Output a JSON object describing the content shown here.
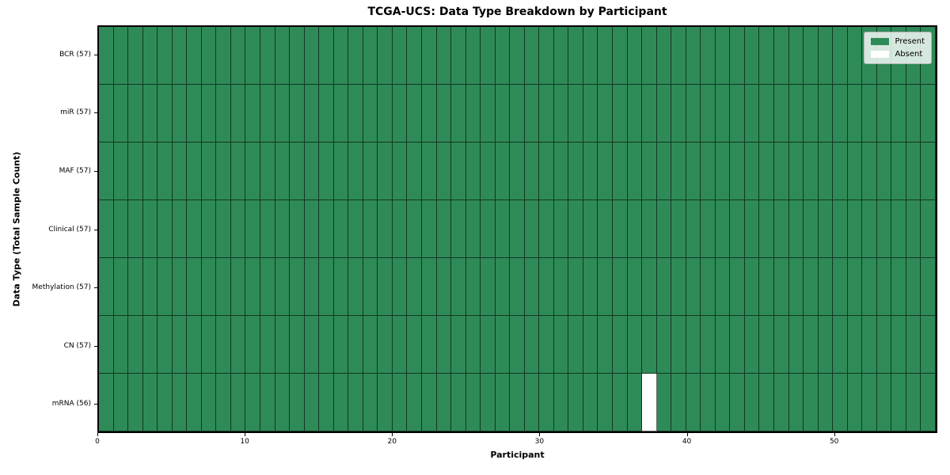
{
  "figure": {
    "background": "#FFFFFF"
  },
  "chart_data": {
    "type": "heatmap",
    "title": "TCGA-UCS: Data Type Breakdown by Participant",
    "xlabel": "Participant",
    "ylabel": "Data Type (Total Sample Count)",
    "x_range": [
      0,
      57
    ],
    "x_ticks": [
      0,
      10,
      20,
      30,
      40,
      50
    ],
    "n_participants": 57,
    "rows": [
      {
        "label": "BCR (57)",
        "data_type": "BCR",
        "present_count": 57,
        "absent_participants": []
      },
      {
        "label": "miR (57)",
        "data_type": "miR",
        "present_count": 57,
        "absent_participants": []
      },
      {
        "label": "MAF (57)",
        "data_type": "MAF",
        "present_count": 57,
        "absent_participants": []
      },
      {
        "label": "Clinical (57)",
        "data_type": "Clinical",
        "present_count": 57,
        "absent_participants": []
      },
      {
        "label": "Methylation (57)",
        "data_type": "Methylation",
        "present_count": 57,
        "absent_participants": []
      },
      {
        "label": "CN (57)",
        "data_type": "CN",
        "present_count": 57,
        "absent_participants": []
      },
      {
        "label": "mRNA (56)",
        "data_type": "mRNA",
        "present_count": 56,
        "absent_participants": [
          37
        ]
      }
    ],
    "legend": {
      "position": "upper right",
      "entries": [
        {
          "label": "Present",
          "color": "#2E8B57"
        },
        {
          "label": "Absent",
          "color": "#FFFFFF"
        }
      ]
    },
    "colors": {
      "present": "#2E8B57",
      "absent": "#FFFFFF",
      "cell_edge": "rgba(0,0,0,0.6)",
      "spine": "#000000"
    },
    "grid": "cell-borders",
    "legend_visible": true
  }
}
